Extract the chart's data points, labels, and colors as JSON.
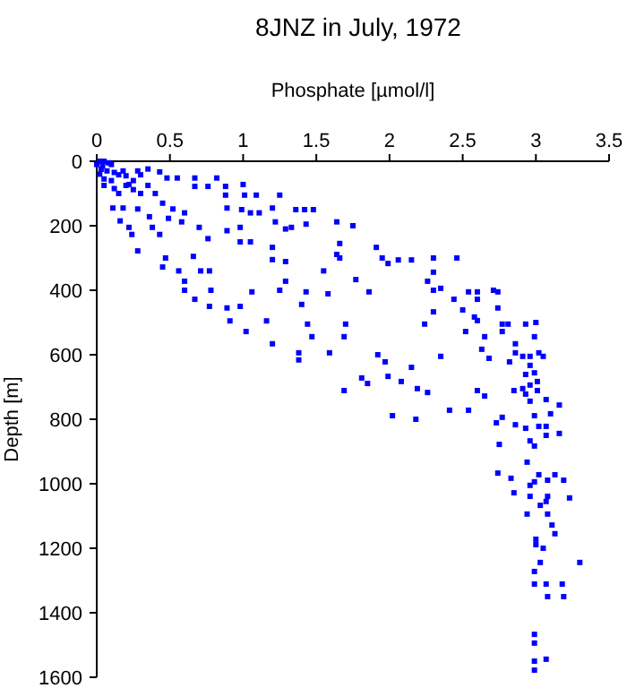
{
  "chart_data": {
    "type": "scatter",
    "title": "8JNZ in July, 1972",
    "xlabel": "Phosphate [µmol/l]",
    "ylabel": "Depth [m]",
    "xlim": [
      0,
      3.5
    ],
    "xticks": [
      0,
      0.5,
      1,
      1.5,
      2,
      2.5,
      3,
      3.5
    ],
    "ylim": [
      1600,
      0
    ],
    "yticks": [
      0,
      200,
      400,
      600,
      800,
      1000,
      1200,
      1400,
      1600
    ],
    "grid": false,
    "marker": "square",
    "series": [
      {
        "color": "#0000ff",
        "x": [
          0.02,
          0.05,
          0.08,
          0.0,
          0.04,
          0.1,
          0.03,
          0.07,
          0.12,
          0.02,
          0.15,
          0.2,
          0.28,
          0.3,
          0.18,
          0.25,
          0.1,
          0.05,
          0.2,
          0.35,
          0.05,
          0.15,
          0.3,
          0.12,
          0.25,
          0.4,
          0.22,
          0.35,
          0.43,
          0.48,
          0.55,
          0.67,
          0.82,
          0.67,
          0.76,
          0.88,
          1.0,
          0.88,
          1.01,
          1.09,
          1.25,
          0.11,
          0.18,
          0.28,
          0.45,
          0.52,
          0.6,
          0.89,
          0.99,
          1.05,
          1.11,
          1.2,
          1.36,
          1.42,
          1.48,
          0.16,
          0.22,
          0.24,
          0.36,
          0.38,
          0.43,
          0.49,
          0.58,
          0.7,
          0.76,
          0.89,
          0.98,
          0.98,
          1.05,
          1.22,
          1.29,
          1.33,
          1.43,
          1.64,
          1.75,
          1.66,
          0.28,
          0.47,
          0.45,
          0.66,
          0.56,
          0.6,
          0.71,
          0.77,
          0.6,
          0.78,
          0.67,
          0.77,
          0.89,
          0.91,
          0.98,
          1.02,
          1.06,
          1.16,
          1.2,
          1.29,
          1.2,
          1.25,
          1.29,
          1.4,
          1.43,
          1.44,
          1.47,
          1.2,
          1.38,
          1.38,
          1.55,
          1.58,
          1.59,
          1.64,
          1.66,
          1.7,
          1.69,
          1.69,
          1.91,
          1.95,
          1.99,
          2.06,
          2.15,
          2.3,
          2.46,
          1.77,
          1.86,
          2.26,
          2.3,
          2.35,
          2.3,
          2.44,
          2.54,
          2.6,
          2.6,
          2.71,
          2.74,
          2.74,
          2.3,
          2.5,
          2.58,
          2.6,
          2.24,
          2.52,
          2.65,
          2.77,
          2.77,
          2.81,
          2.93,
          3.0,
          2.86,
          2.99,
          2.63,
          2.68,
          2.35,
          2.82,
          2.86,
          2.91,
          2.96,
          3.02,
          3.05,
          2.96,
          2.93,
          2.99,
          3.01,
          2.96,
          2.93,
          3.01,
          2.96,
          3.07,
          3.16,
          1.92,
          1.97,
          2.15,
          2.19,
          2.26,
          1.99,
          2.08,
          1.85,
          1.81,
          2.02,
          2.18,
          2.41,
          2.54,
          2.6,
          2.65,
          2.73,
          2.77,
          2.85,
          2.91,
          2.86,
          2.93,
          2.99,
          3.02,
          3.07,
          3.1,
          3.16,
          3.07,
          2.96,
          2.99,
          2.75,
          2.94,
          2.74,
          2.83,
          2.85,
          2.96,
          2.99,
          3.02,
          3.08,
          3.13,
          3.19,
          2.96,
          3.08,
          3.07,
          3.03,
          3.23,
          2.94,
          3.08,
          3.11,
          3.13,
          3.0,
          3.0,
          3.05,
          3.3,
          2.99,
          2.99,
          3.07,
          3.18,
          3.08,
          3.19,
          3.03,
          2.99,
          2.99,
          2.99,
          3.07,
          2.99
        ],
        "values": [
          0,
          0,
          5,
          10,
          15,
          10,
          25,
          30,
          35,
          40,
          42,
          45,
          30,
          42,
          30,
          60,
          60,
          55,
          75,
          75,
          75,
          100,
          100,
          85,
          88,
          100,
          72,
          24,
          33,
          52,
          52,
          52,
          52,
          78,
          78,
          78,
          72,
          105,
          105,
          105,
          105,
          145,
          145,
          148,
          130,
          148,
          160,
          145,
          150,
          160,
          160,
          145,
          150,
          150,
          150,
          185,
          205,
          227,
          172,
          205,
          227,
          177,
          188,
          205,
          240,
          215,
          205,
          250,
          250,
          188,
          210,
          205,
          195,
          188,
          200,
          255,
          278,
          300,
          328,
          295,
          340,
          372,
          340,
          340,
          400,
          400,
          428,
          450,
          455,
          495,
          450,
          528,
          405,
          495,
          305,
          311,
          267,
          400,
          372,
          444,
          405,
          505,
          544,
          566,
          594,
          616,
          340,
          411,
          594,
          289,
          300,
          505,
          544,
          711,
          267,
          300,
          317,
          306,
          306,
          300,
          300,
          367,
          405,
          372,
          344,
          394,
          400,
          428,
          405,
          405,
          428,
          400,
          405,
          455,
          467,
          461,
          483,
          494,
          505,
          528,
          544,
          505,
          528,
          505,
          505,
          500,
          566,
          544,
          583,
          611,
          605,
          622,
          594,
          605,
          605,
          594,
          605,
          633,
          661,
          656,
          683,
          694,
          722,
          711,
          744,
          739,
          756,
          600,
          622,
          639,
          705,
          717,
          667,
          683,
          689,
          672,
          789,
          800,
          772,
          772,
          711,
          728,
          811,
          794,
          711,
          705,
          817,
          828,
          789,
          822,
          822,
          783,
          844,
          850,
          867,
          883,
          878,
          933,
          967,
          983,
          1028,
          1005,
          994,
          972,
          989,
          972,
          989,
          1039,
          1039,
          1055,
          1067,
          1044,
          1094,
          1094,
          1128,
          1155,
          1172,
          1189,
          1200,
          1244,
          1272,
          1311,
          1311,
          1311,
          1350,
          1350,
          1244,
          1467,
          1494,
          1550,
          1544,
          1578
        ]
      }
    ]
  }
}
